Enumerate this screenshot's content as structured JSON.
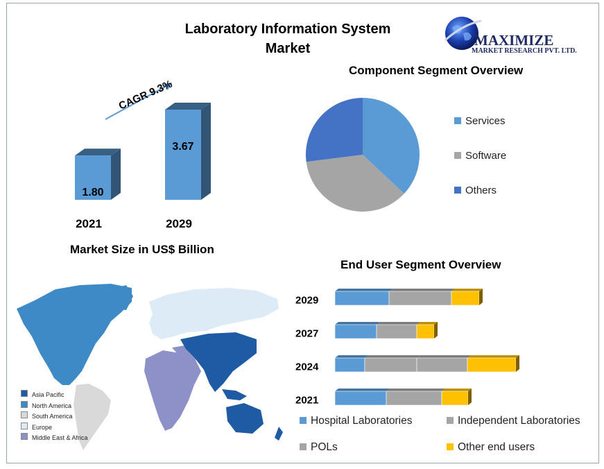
{
  "title_line1": "Laboratory Information System",
  "title_line2": "Market",
  "logo": {
    "name": "MAXIMIZE",
    "sub": "MARKET RESEARCH PVT. LTD."
  },
  "market_size": {
    "subtitle": "Market Size in US$ Billion",
    "cagr_label": "CAGR 9.3%",
    "bar_color": "#5b9bd5",
    "bars": [
      {
        "year": "2021",
        "value": 1.8,
        "label": "1.80"
      },
      {
        "year": "2029",
        "value": 3.67,
        "label": "3.67"
      }
    ]
  },
  "map_legend": [
    {
      "label": "Asia Pacific",
      "color": "#1f5ba5"
    },
    {
      "label": "North America",
      "color": "#3e8ac7"
    },
    {
      "label": "South America",
      "color": "#d9d9d9"
    },
    {
      "label": "Europe",
      "color": "#dcebf6"
    },
    {
      "label": "Middle East & Africa",
      "color": "#8e91c8"
    }
  ],
  "chart_data": [
    {
      "type": "bar",
      "title": "Market Size in US$ Billion",
      "categories": [
        "2021",
        "2029"
      ],
      "values": [
        1.8,
        3.67
      ],
      "annotation": "CAGR 9.3%"
    },
    {
      "type": "pie",
      "title": "Component Segment Overview",
      "legend_position": "right",
      "slices": [
        {
          "label": "Services",
          "value": 37,
          "color": "#5b9bd5"
        },
        {
          "label": "Software",
          "value": 36,
          "color": "#a5a5a5"
        },
        {
          "label": "Others",
          "value": 27,
          "color": "#4472c4"
        }
      ]
    },
    {
      "type": "bar",
      "orientation": "horizontal-stacked",
      "title": "End User Segment Overview",
      "legend_position": "bottom",
      "categories": [
        "2029",
        "2027",
        "2024",
        "2021"
      ],
      "series": [
        {
          "name": "Hospital Laboratories",
          "color": "#5b9bd5",
          "values": [
            78,
            60,
            43,
            74
          ]
        },
        {
          "name": "Independent Laboratories",
          "color": "#a5a5a5",
          "values": [
            90,
            58,
            75,
            80
          ]
        },
        {
          "name": "POLs",
          "color": "#a5a5a5",
          "values": [
            0,
            0,
            73,
            0
          ]
        },
        {
          "name": "Other end users",
          "color": "#ffc000",
          "values": [
            40,
            25,
            70,
            38
          ]
        }
      ]
    }
  ]
}
